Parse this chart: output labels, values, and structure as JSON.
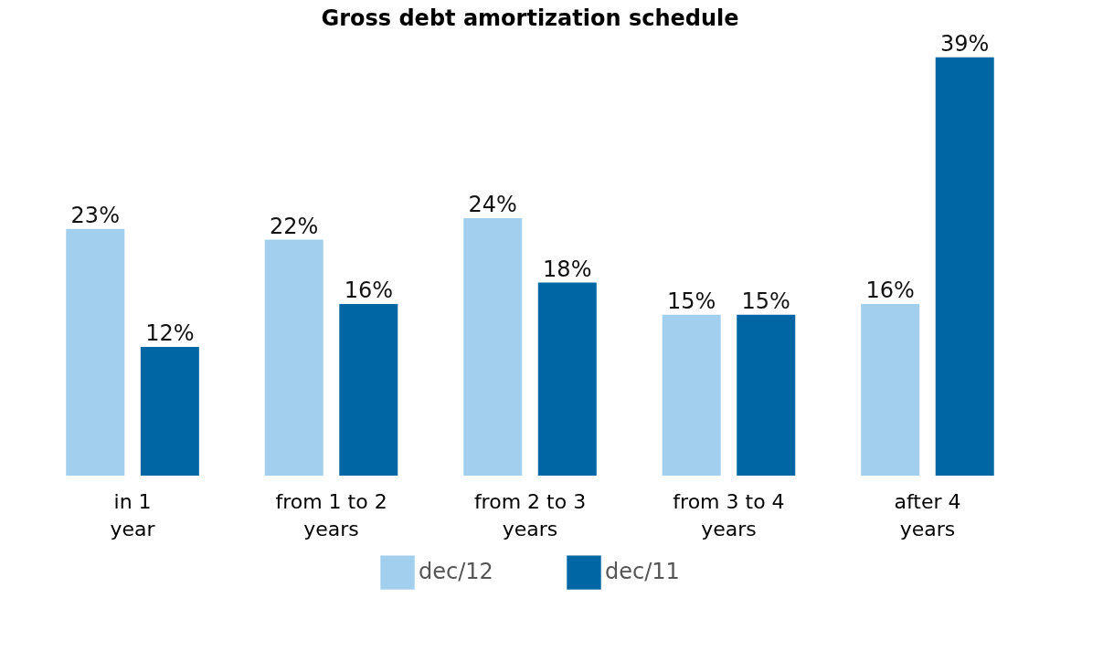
{
  "chart_data": {
    "type": "bar",
    "title": "Gross debt amortization schedule",
    "categories": [
      "in 1 year",
      "from 1 to 2 years",
      "from 2 to 3 years",
      "from 3 to 4 years",
      "after 4 years"
    ],
    "series": [
      {
        "name": "dec/12",
        "color": "#a3cfee",
        "values": [
          23,
          22,
          24,
          15,
          16
        ],
        "value_labels": [
          "23%",
          "22%",
          "24%",
          "15%",
          "16%"
        ]
      },
      {
        "name": "dec/11",
        "color": "#0066a4",
        "values": [
          12,
          16,
          18,
          15,
          39
        ],
        "value_labels": [
          "12%",
          "16%",
          "18%",
          "15%",
          "39%"
        ]
      }
    ],
    "legend": "bottom"
  }
}
